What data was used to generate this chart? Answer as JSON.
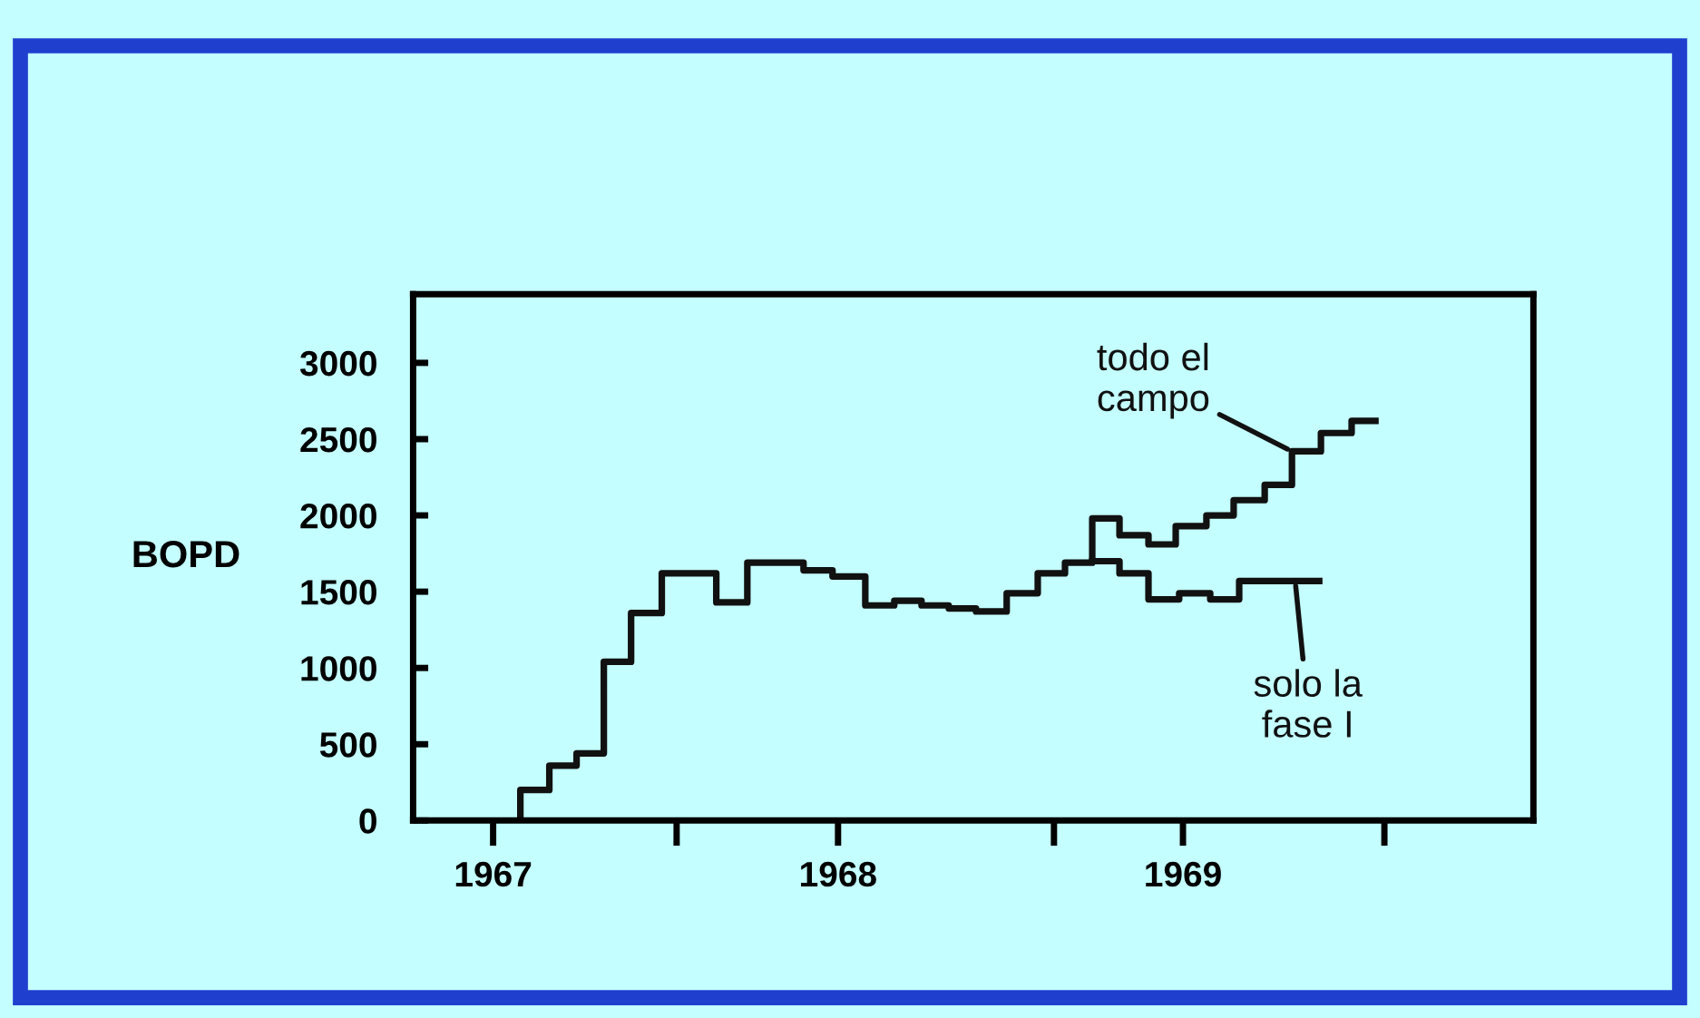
{
  "chart_data": {
    "type": "step",
    "ylabel": "BOPD",
    "xlim": [
      1966.768,
      1970.016
    ],
    "ylim": [
      0,
      3450
    ],
    "xticks": [
      1967,
      {
        "value": 1967.532,
        "label": null
      },
      1968,
      {
        "value": 1968.626,
        "label": null
      },
      1969,
      {
        "value": 1969.584,
        "label": null
      }
    ],
    "yticks": [
      0,
      500,
      1000,
      1500,
      2000,
      2500,
      3000
    ],
    "grid": false,
    "marker": "none",
    "line_style": "solid",
    "series": [
      {
        "name": "todo el campo",
        "color": "#111111",
        "x": [
          1967.079,
          1967.079,
          1967.163,
          1967.242,
          1967.321,
          1967.4,
          1967.489,
          1967.647,
          1967.737,
          1967.9,
          1967.984,
          1968.079,
          1968.163,
          1968.242,
          1968.321,
          1968.4,
          1968.489,
          1968.579,
          1968.658,
          1968.737,
          1968.816,
          1968.9,
          1968.979,
          1969.068,
          1969.147,
          1969.237,
          1969.316,
          1969.4,
          1969.489,
          1969.558
        ],
        "values": [
          0,
          200,
          360,
          440,
          1040,
          1360,
          1620,
          1430,
          1690,
          1640,
          1600,
          1410,
          1440,
          1410,
          1390,
          1370,
          1490,
          1620,
          1690,
          1980,
          1870,
          1810,
          1930,
          2000,
          2100,
          2200,
          2420,
          2540,
          2620,
          2620
        ]
      },
      {
        "name": "solo la fase I",
        "color": "#111111",
        "x": [
          1968.737,
          1968.816,
          1968.9,
          1968.989,
          1969.079,
          1969.163,
          1969.395
        ],
        "values": [
          1700,
          1620,
          1450,
          1490,
          1450,
          1570,
          1570
        ]
      }
    ]
  }
}
